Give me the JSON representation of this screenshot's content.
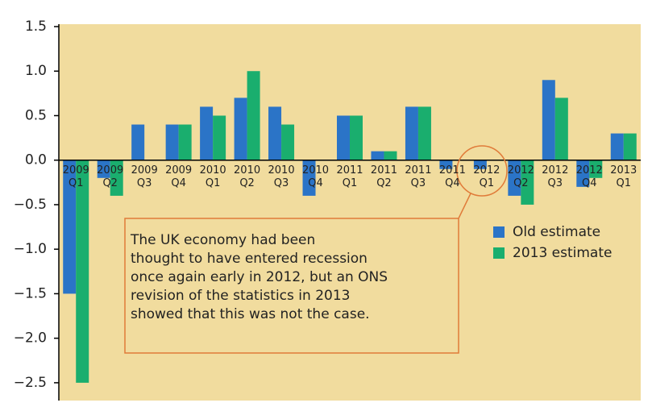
{
  "chart_data": {
    "type": "bar",
    "categories": [
      "2009 Q1",
      "2009 Q2",
      "2009 Q3",
      "2009 Q4",
      "2010 Q1",
      "2010 Q2",
      "2010 Q3",
      "2010 Q4",
      "2011 Q1",
      "2011 Q2",
      "2011 Q3",
      "2011 Q4",
      "2012 Q1",
      "2012 Q2",
      "2012 Q3",
      "2012 Q4",
      "2013 Q1"
    ],
    "series": [
      {
        "name": "Old estimate",
        "color": "#2b74c7",
        "values": [
          -1.5,
          -0.2,
          0.4,
          0.4,
          0.6,
          0.7,
          0.6,
          -0.4,
          0.5,
          0.1,
          0.6,
          -0.1,
          -0.1,
          -0.4,
          0.9,
          -0.3,
          0.3
        ]
      },
      {
        "name": "2013 estimate",
        "color": "#1aae6e",
        "values": [
          -2.5,
          -0.4,
          0.0,
          0.4,
          0.5,
          1.0,
          0.4,
          0.0,
          0.5,
          0.1,
          0.6,
          0.0,
          0.0,
          -0.5,
          0.7,
          -0.2,
          0.3
        ]
      }
    ],
    "ylim": [
      -2.7,
      1.5
    ],
    "yticks": [
      1.5,
      {
        "value": 1.0,
        "label": "1.0"
      },
      0.5,
      {
        "value": 0.0,
        "label": "0.0"
      },
      {
        "value": -0.5,
        "label": "−0.5"
      },
      {
        "value": -1.0,
        "label": "−1.0"
      },
      {
        "value": -1.5,
        "label": "−1.5"
      },
      {
        "value": -2.0,
        "label": "−2.0"
      },
      {
        "value": -2.5,
        "label": "−2.5"
      }
    ],
    "annotation": [
      "The UK economy had been",
      "thought to have entered recession",
      "once again early in 2012, but an ONS",
      "revision of the statistics in 2013",
      "showed that this was not the case."
    ],
    "background": "#f1dc9e",
    "grid": false
  }
}
